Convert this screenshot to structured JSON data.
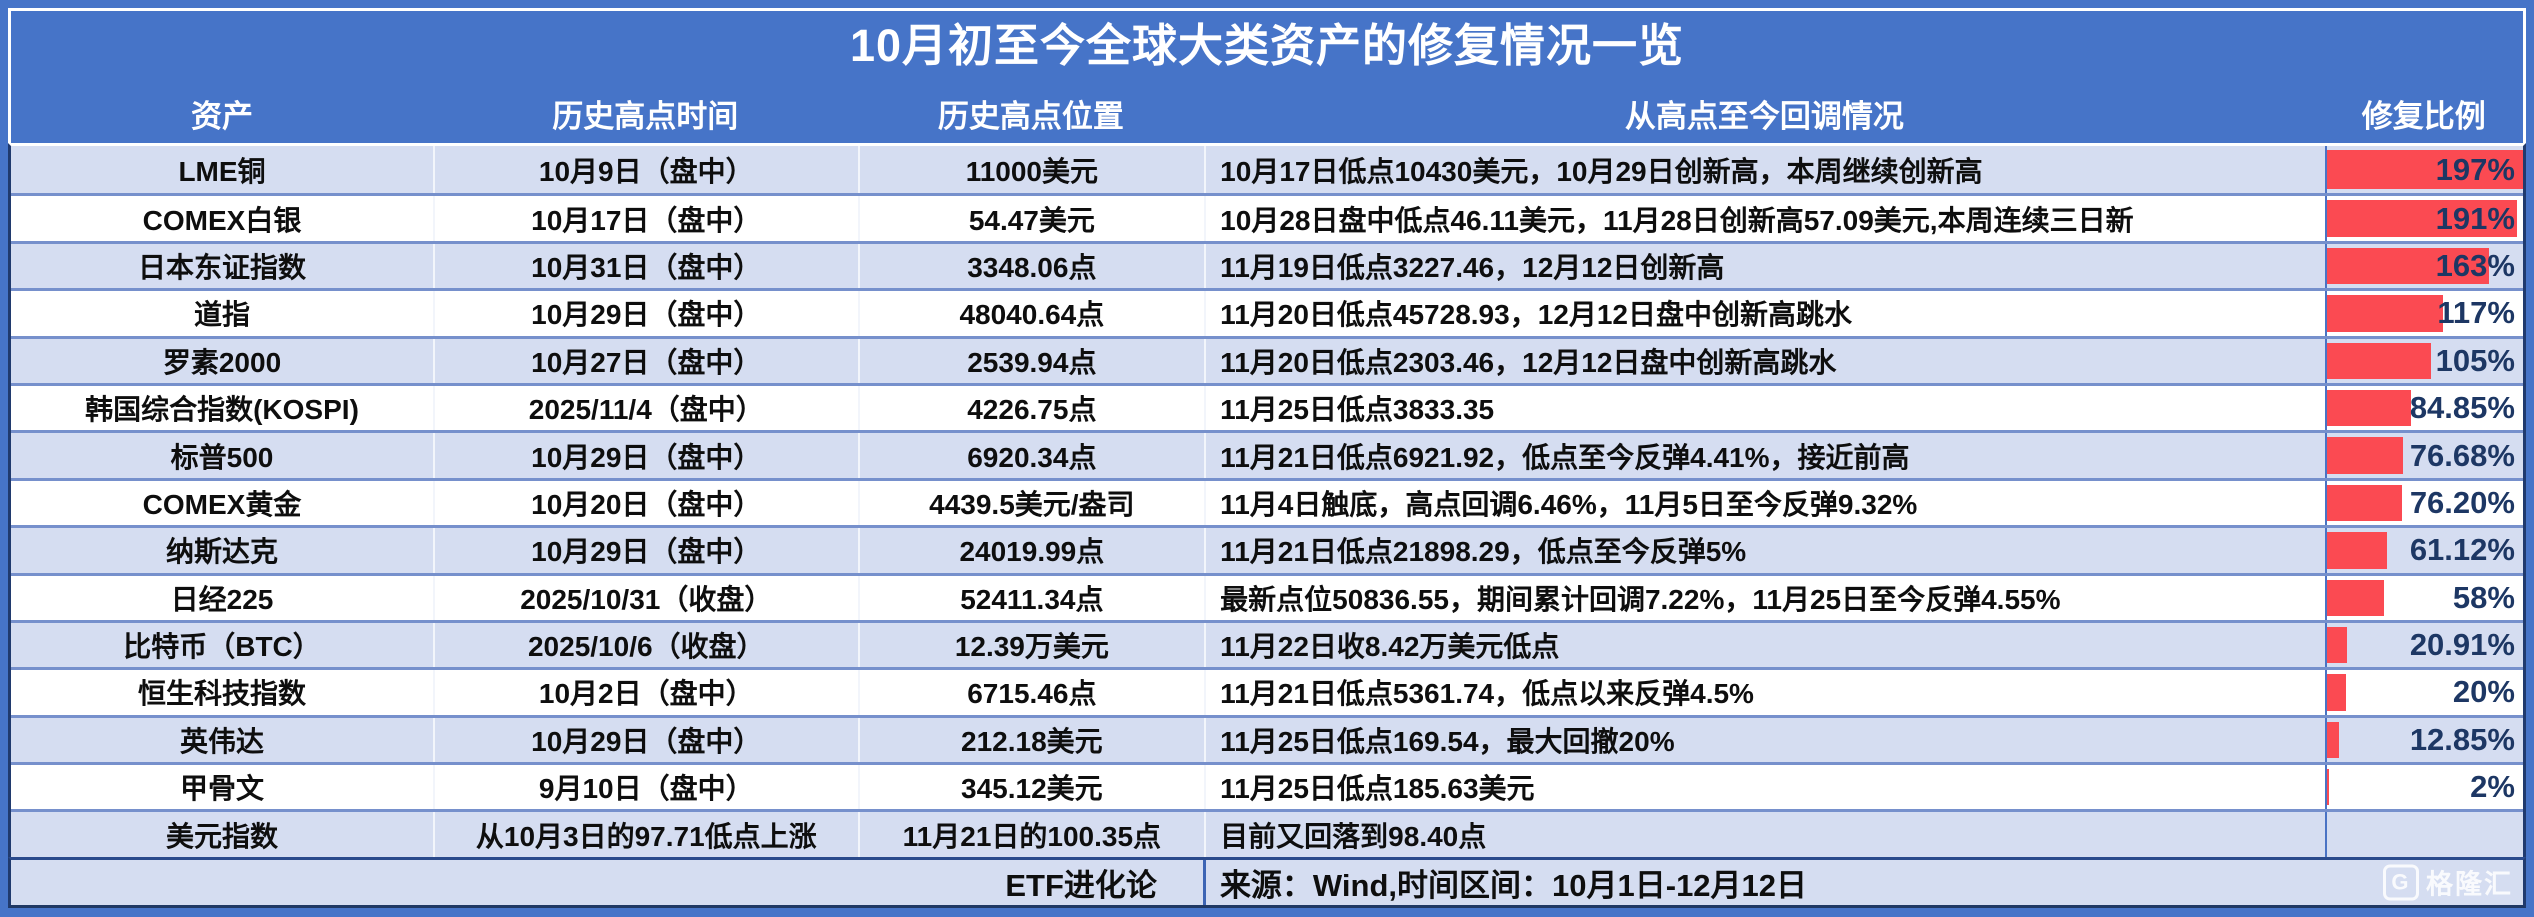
{
  "title": "10月初至今全球大类资产的修复情况一览",
  "columns": [
    "资产",
    "历史高点时间",
    "历史高点位置",
    "从高点至今回调情况",
    "修复比例"
  ],
  "colors": {
    "page_blue": "#4674C8",
    "row_alt_blue": "#D5DDF1",
    "bar_red": "#FB4A52",
    "pct_text_navy": "#1D3764",
    "outer_border_navy": "#203A6E",
    "row_separator_blue": "#7690CC"
  },
  "bar_max": 197,
  "rows": [
    {
      "asset": "LME铜",
      "high_time": "10月9日（盘中）",
      "high_value": "11000美元",
      "pullback": "10月17日低点10430美元，10月29日创新高，本周继续创新高",
      "repair_label": "197%",
      "repair_value": 197
    },
    {
      "asset": "COMEX白银",
      "high_time": "10月17日（盘中）",
      "high_value": "54.47美元",
      "pullback": "10月28日盘中低点46.11美元，11月28日创新高57.09美元,本周连续三日新",
      "repair_label": "191%",
      "repair_value": 191
    },
    {
      "asset": "日本东证指数",
      "high_time": "10月31日（盘中）",
      "high_value": "3348.06点",
      "pullback": "11月19日低点3227.46，12月12日创新高",
      "repair_label": "163%",
      "repair_value": 163
    },
    {
      "asset": "道指",
      "high_time": "10月29日（盘中）",
      "high_value": "48040.64点",
      "pullback": "11月20日低点45728.93，12月12日盘中创新高跳水",
      "repair_label": "117%",
      "repair_value": 117
    },
    {
      "asset": "罗素2000",
      "high_time": "10月27日（盘中）",
      "high_value": "2539.94点",
      "pullback": "11月20日低点2303.46，12月12日盘中创新高跳水",
      "repair_label": "105%",
      "repair_value": 105
    },
    {
      "asset": "韩国综合指数(KOSPI)",
      "high_time": "2025/11/4（盘中）",
      "high_value": "4226.75点",
      "pullback": "11月25日低点3833.35",
      "repair_label": "84.85%",
      "repair_value": 84.85
    },
    {
      "asset": "标普500",
      "high_time": "10月29日（盘中）",
      "high_value": "6920.34点",
      "pullback": "11月21日低点6921.92，低点至今反弹4.41%，接近前高",
      "repair_label": "76.68%",
      "repair_value": 76.68
    },
    {
      "asset": "COMEX黄金",
      "high_time": "10月20日（盘中）",
      "high_value": "4439.5美元/盎司",
      "pullback": "11月4日触底，高点回调6.46%，11月5日至今反弹9.32%",
      "repair_label": "76.20%",
      "repair_value": 76.2
    },
    {
      "asset": "纳斯达克",
      "high_time": "10月29日（盘中）",
      "high_value": "24019.99点",
      "pullback": "11月21日低点21898.29，低点至今反弹5%",
      "repair_label": "61.12%",
      "repair_value": 61.12
    },
    {
      "asset": "日经225",
      "high_time": "2025/10/31（收盘）",
      "high_value": "52411.34点",
      "pullback": "最新点位50836.55，期间累计回调7.22%，11月25日至今反弹4.55%",
      "repair_label": "58%",
      "repair_value": 58
    },
    {
      "asset": "比特币（BTC）",
      "high_time": "2025/10/6（收盘）",
      "high_value": "12.39万美元",
      "pullback": "11月22日收8.42万美元低点",
      "repair_label": "20.91%",
      "repair_value": 20.91
    },
    {
      "asset": "恒生科技指数",
      "high_time": "10月2日（盘中）",
      "high_value": "6715.46点",
      "pullback": "11月21日低点5361.74，低点以来反弹4.5%",
      "repair_label": "20%",
      "repair_value": 20
    },
    {
      "asset": "英伟达",
      "high_time": "10月29日（盘中）",
      "high_value": "212.18美元",
      "pullback": "11月25日低点169.54，最大回撤20%",
      "repair_label": "12.85%",
      "repair_value": 12.85
    },
    {
      "asset": "甲骨文",
      "high_time": "9月10日（盘中）",
      "high_value": "345.12美元",
      "pullback": "11月25日低点185.63美元",
      "repair_label": "2%",
      "repair_value": 2
    },
    {
      "asset": "美元指数",
      "high_time": "从10月3日的97.71低点上涨",
      "high_value": "11月21日的100.35点",
      "pullback": "目前又回落到98.40点",
      "repair_label": "",
      "repair_value": null
    }
  ],
  "footer": {
    "brand": "ETF进化论",
    "source": "来源：Wind,时间区间：10月1日-12月12日",
    "logo_letter": "G",
    "logo_text": "格隆汇"
  },
  "chart_data": {
    "type": "bar",
    "title": "修复比例",
    "categories": [
      "LME铜",
      "COMEX白银",
      "日本东证指数",
      "道指",
      "罗素2000",
      "韩国综合指数(KOSPI)",
      "标普500",
      "COMEX黄金",
      "纳斯达克",
      "日经225",
      "比特币（BTC）",
      "恒生科技指数",
      "英伟达",
      "甲骨文"
    ],
    "values": [
      197,
      191,
      163,
      117,
      105,
      84.85,
      76.68,
      76.2,
      61.12,
      58,
      20.91,
      20,
      12.85,
      2
    ],
    "xlabel": "",
    "ylabel": "修复比例(%)",
    "ylim": [
      0,
      197
    ],
    "legend_position": "none",
    "grid": false
  }
}
